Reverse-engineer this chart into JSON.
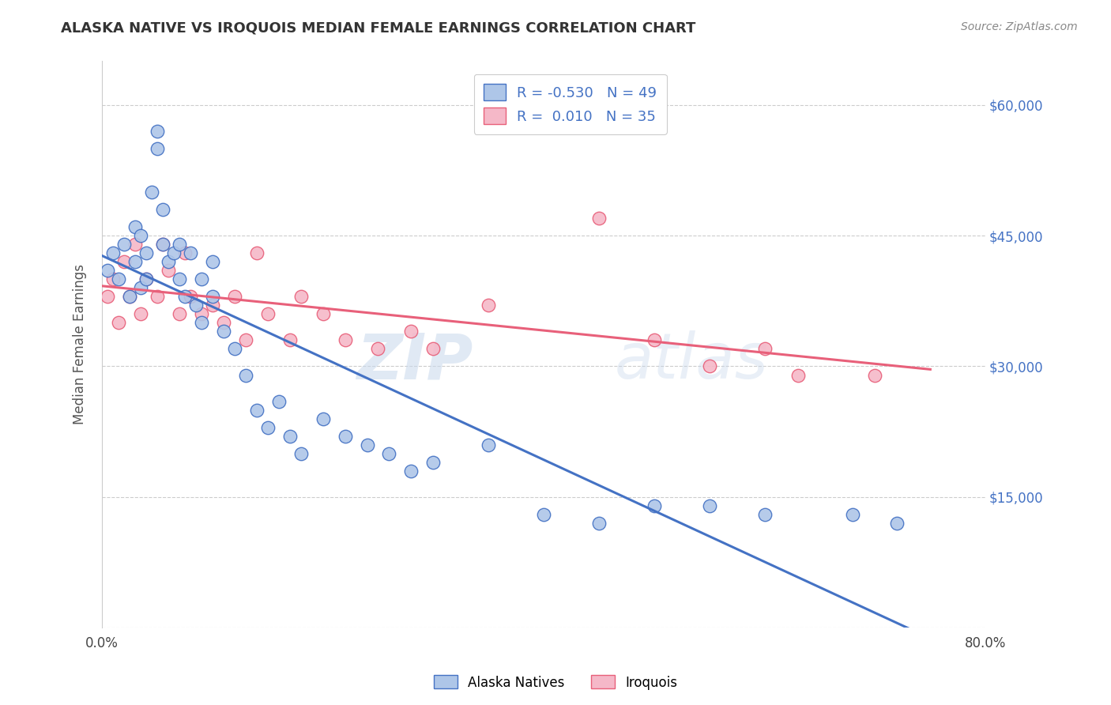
{
  "title": "ALASKA NATIVE VS IROQUOIS MEDIAN FEMALE EARNINGS CORRELATION CHART",
  "source": "Source: ZipAtlas.com",
  "ylabel": "Median Female Earnings",
  "right_ytick_labels": [
    "$60,000",
    "$45,000",
    "$30,000",
    "$15,000",
    ""
  ],
  "right_ytick_values": [
    60000,
    45000,
    30000,
    15000,
    0
  ],
  "xlim": [
    0.0,
    0.8
  ],
  "ylim": [
    0,
    65000
  ],
  "xtick_labels": [
    "0.0%",
    "",
    "",
    "",
    "80.0%"
  ],
  "xtick_values": [
    0.0,
    0.2,
    0.4,
    0.6,
    0.8
  ],
  "alaska_R": -0.53,
  "alaska_N": 49,
  "iroquois_R": 0.01,
  "iroquois_N": 35,
  "alaska_color": "#aec6e8",
  "iroquois_color": "#f5b8c8",
  "alaska_line_color": "#4472c4",
  "iroquois_line_color": "#e8607a",
  "legend_label_alaska": "Alaska Natives",
  "legend_label_iroquois": "Iroquois",
  "watermark_zip": "ZIP",
  "watermark_atlas": "atlas",
  "alaska_x": [
    0.005,
    0.01,
    0.015,
    0.02,
    0.025,
    0.03,
    0.03,
    0.035,
    0.035,
    0.04,
    0.04,
    0.045,
    0.05,
    0.05,
    0.055,
    0.055,
    0.06,
    0.065,
    0.07,
    0.07,
    0.075,
    0.08,
    0.085,
    0.09,
    0.09,
    0.1,
    0.1,
    0.11,
    0.12,
    0.13,
    0.14,
    0.15,
    0.16,
    0.17,
    0.18,
    0.2,
    0.22,
    0.24,
    0.26,
    0.28,
    0.3,
    0.35,
    0.4,
    0.45,
    0.5,
    0.55,
    0.6,
    0.68,
    0.72
  ],
  "alaska_y": [
    41000,
    43000,
    40000,
    44000,
    38000,
    42000,
    46000,
    39000,
    45000,
    43000,
    40000,
    50000,
    55000,
    57000,
    48000,
    44000,
    42000,
    43000,
    40000,
    44000,
    38000,
    43000,
    37000,
    40000,
    35000,
    42000,
    38000,
    34000,
    32000,
    29000,
    25000,
    23000,
    26000,
    22000,
    20000,
    24000,
    22000,
    21000,
    20000,
    18000,
    19000,
    21000,
    13000,
    12000,
    14000,
    14000,
    13000,
    13000,
    12000
  ],
  "iroquois_x": [
    0.005,
    0.01,
    0.015,
    0.02,
    0.025,
    0.03,
    0.035,
    0.04,
    0.05,
    0.055,
    0.06,
    0.07,
    0.075,
    0.08,
    0.09,
    0.1,
    0.11,
    0.12,
    0.13,
    0.14,
    0.15,
    0.17,
    0.18,
    0.2,
    0.22,
    0.25,
    0.28,
    0.3,
    0.35,
    0.45,
    0.5,
    0.55,
    0.6,
    0.63,
    0.7
  ],
  "iroquois_y": [
    38000,
    40000,
    35000,
    42000,
    38000,
    44000,
    36000,
    40000,
    38000,
    44000,
    41000,
    36000,
    43000,
    38000,
    36000,
    37000,
    35000,
    38000,
    33000,
    43000,
    36000,
    33000,
    38000,
    36000,
    33000,
    32000,
    34000,
    32000,
    37000,
    47000,
    33000,
    30000,
    32000,
    29000,
    29000
  ]
}
